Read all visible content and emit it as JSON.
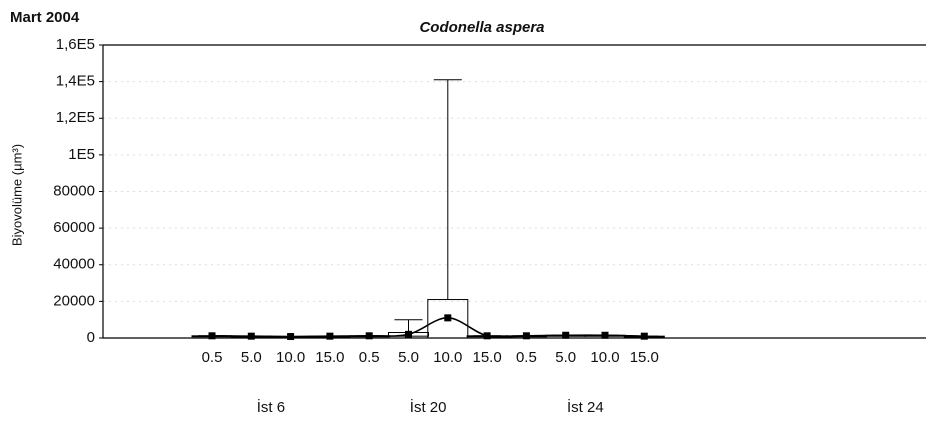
{
  "chart_data": {
    "type": "box",
    "title": "Codonella aspera",
    "subtitle": "Mart 2004",
    "ylabel": "Biyovolüme (µm³)",
    "categories": [
      "0.5",
      "5.0",
      "10.0",
      "15.0",
      "0.5",
      "5.0",
      "10.0",
      "15.0",
      "0.5",
      "5.0",
      "10.0",
      "15.0"
    ],
    "groups": [
      {
        "label": "İst 6",
        "size": 4
      },
      {
        "label": "İst 20",
        "size": 4
      },
      {
        "label": "İst 24",
        "size": 4
      }
    ],
    "median": [
      1200,
      1000,
      800,
      1000,
      1200,
      2000,
      11000,
      1200,
      1200,
      1500,
      1500,
      1000
    ],
    "q1": [
      1200,
      1000,
      800,
      1000,
      1200,
      1000,
      0,
      1200,
      1200,
      1500,
      1500,
      1000
    ],
    "q3": [
      1200,
      1000,
      800,
      1000,
      1200,
      3000,
      21000,
      1200,
      1200,
      1500,
      1500,
      1000
    ],
    "min": [
      1200,
      1000,
      800,
      1000,
      1200,
      0,
      0,
      1200,
      1200,
      1500,
      1500,
      1000
    ],
    "max": [
      1200,
      1000,
      800,
      1000,
      1200,
      10000,
      141000,
      1200,
      1200,
      1500,
      1500,
      1000
    ],
    "color": "#000000",
    "ylim": [
      0,
      160000
    ],
    "yticks": [
      0,
      20000,
      40000,
      60000,
      80000,
      {
        "value": 100000,
        "label": "1E5"
      },
      {
        "value": 120000,
        "label": "1,2E5"
      },
      {
        "value": 140000,
        "label": "1,4E5"
      },
      {
        "value": 160000,
        "label": "1,6E5"
      }
    ],
    "grid": true
  }
}
